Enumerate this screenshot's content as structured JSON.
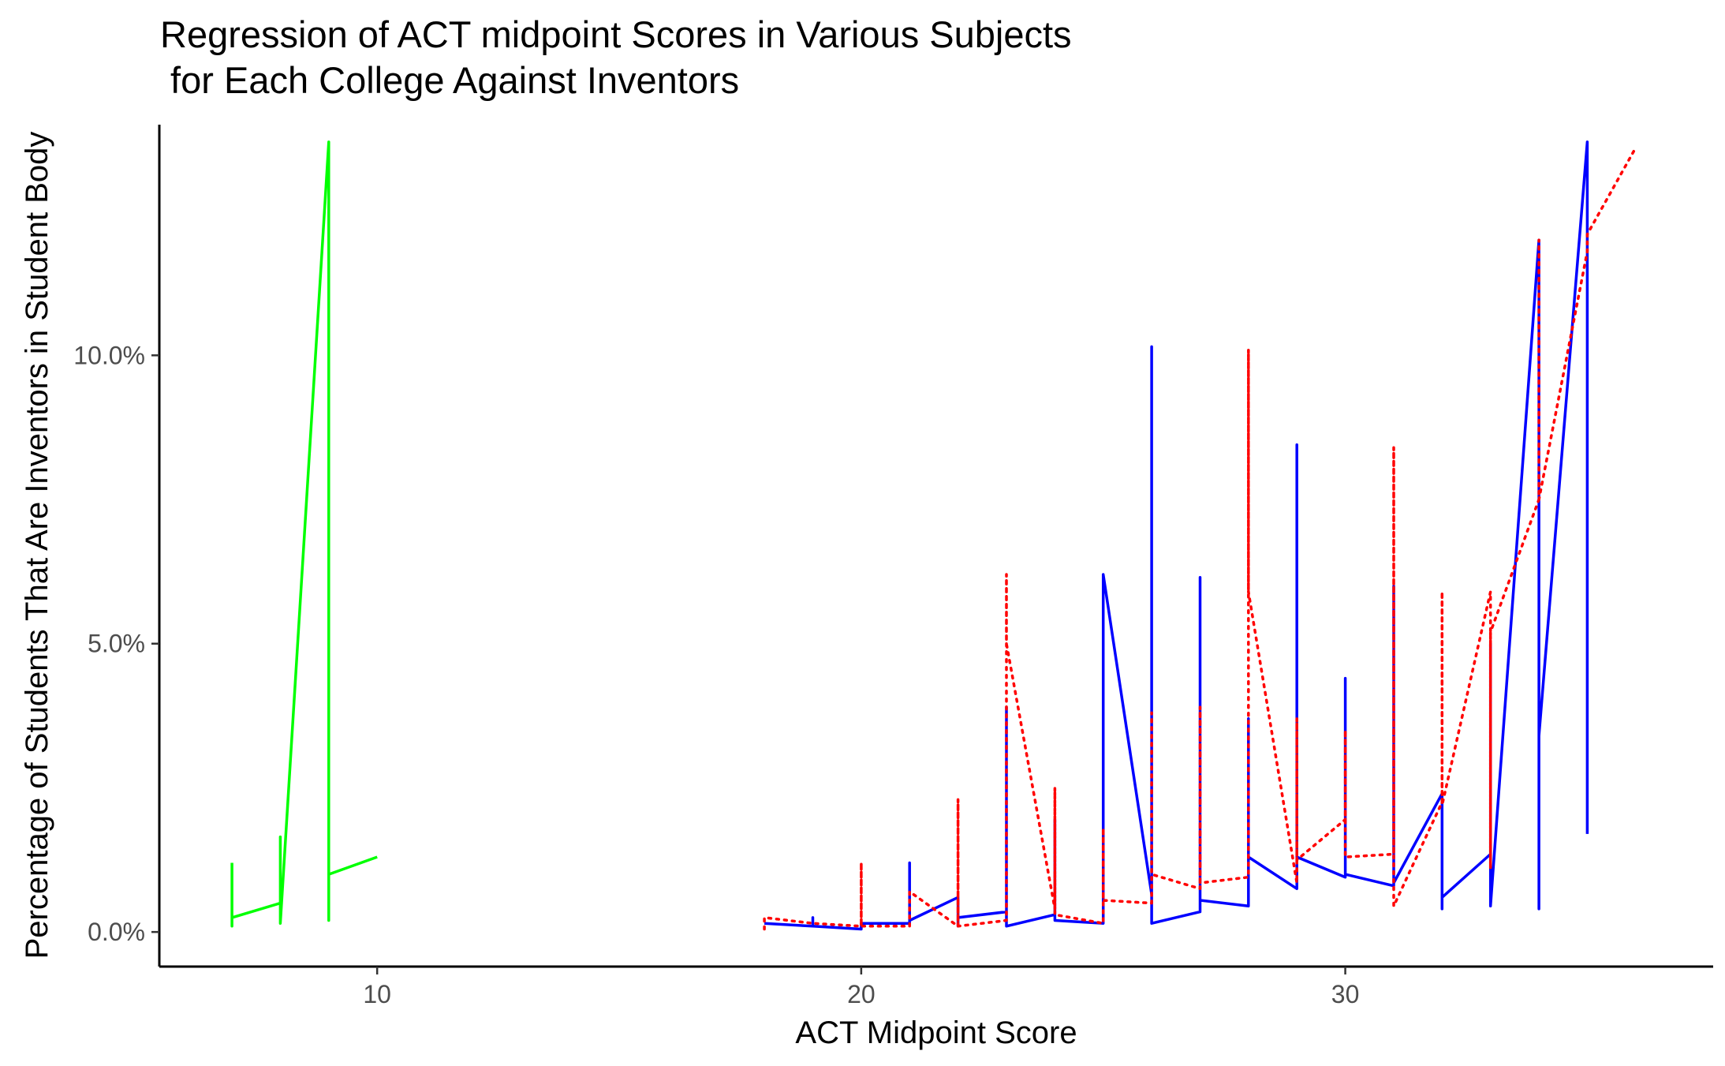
{
  "chart_data": {
    "type": "line",
    "title_lines": [
      "Regression of ACT midpoint Scores in Various Subjects",
      " for Each College Against Inventors"
    ],
    "xlabel": "ACT Midpoint Score",
    "ylabel": "Percentage of Students That Are Inventors in Student Body",
    "xlim": [
      5.5,
      37.6
    ],
    "ylim": [
      -0.6,
      14.0
    ],
    "x_ticks": [
      10,
      20,
      30
    ],
    "x_tick_labels": [
      "10",
      "20",
      "30"
    ],
    "y_ticks": [
      0,
      5,
      10
    ],
    "y_tick_labels": [
      "0.0%",
      "5.0%",
      "10.0%"
    ],
    "grid": false,
    "legend": "none",
    "series": [
      {
        "color": "#00ff00",
        "style": "solid",
        "x": [
          7,
          7,
          7,
          8,
          8,
          8,
          9,
          9,
          9,
          10
        ],
        "y": [
          1.2,
          0.1,
          0.25,
          0.5,
          1.65,
          0.15,
          13.7,
          0.2,
          1.0,
          1.3
        ]
      },
      {
        "color": "#0000ff",
        "style": "solid",
        "x": [
          18,
          19,
          19,
          19,
          20,
          20,
          21,
          21,
          21,
          22,
          22,
          22,
          23,
          23,
          23,
          24,
          24,
          24,
          25,
          25,
          26,
          26,
          26,
          27,
          27,
          27,
          28,
          28,
          28,
          29,
          29,
          29,
          30,
          30,
          30,
          31,
          31,
          31,
          32,
          32,
          32,
          33,
          33,
          33,
          34,
          34,
          34,
          35,
          35
        ],
        "y": [
          0.15,
          0.1,
          0.25,
          0.1,
          0.05,
          0.15,
          0.15,
          1.2,
          0.2,
          0.6,
          0.1,
          0.25,
          0.35,
          3.9,
          0.1,
          0.3,
          1.95,
          0.2,
          0.15,
          6.2,
          0.65,
          10.15,
          0.15,
          0.35,
          6.15,
          0.55,
          0.45,
          3.7,
          1.3,
          0.75,
          8.45,
          1.3,
          0.95,
          4.4,
          1.0,
          0.8,
          6.0,
          0.85,
          2.4,
          0.4,
          0.6,
          1.35,
          5.0,
          0.45,
          12.0,
          0.4,
          3.4,
          13.7,
          1.7
        ]
      },
      {
        "color": "#ff0000",
        "style": "dotted",
        "x": [
          18,
          18,
          19,
          20,
          20,
          20,
          21,
          21,
          22,
          22,
          22,
          23,
          23,
          23,
          24,
          24,
          24,
          25,
          25,
          25,
          26,
          26,
          26,
          27,
          27,
          27,
          28,
          28,
          28,
          29,
          29,
          29,
          30,
          30,
          30,
          31,
          31,
          31,
          32,
          32,
          32,
          33,
          33,
          33,
          34,
          34,
          34,
          35,
          35,
          36
        ],
        "y": [
          0.05,
          0.25,
          0.15,
          0.1,
          1.2,
          0.1,
          0.1,
          0.7,
          0.1,
          2.3,
          0.1,
          0.2,
          6.2,
          5.0,
          0.4,
          2.5,
          0.3,
          0.15,
          1.8,
          0.55,
          0.5,
          3.8,
          1.0,
          0.75,
          3.9,
          0.85,
          0.95,
          10.1,
          5.9,
          0.85,
          3.7,
          1.25,
          1.95,
          3.5,
          1.3,
          1.35,
          8.4,
          0.45,
          2.25,
          5.9,
          2.2,
          5.9,
          1.1,
          5.2,
          7.5,
          12.0,
          7.5,
          11.8,
          12.1,
          13.6
        ]
      }
    ]
  }
}
